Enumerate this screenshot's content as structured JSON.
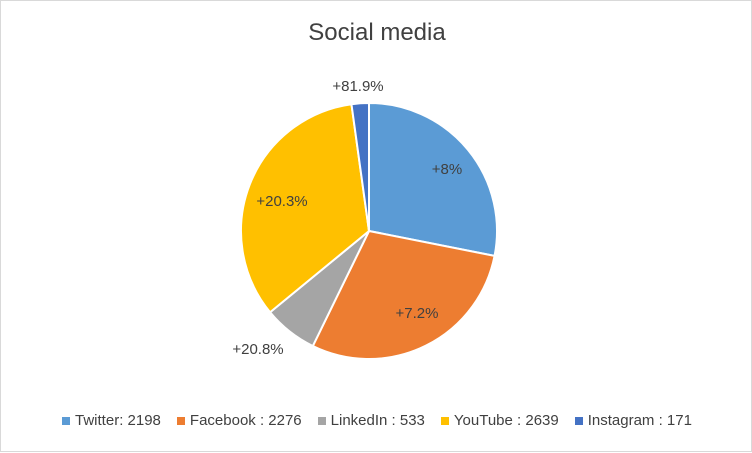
{
  "chart_data": {
    "type": "pie",
    "title": "Social media",
    "categories": [
      "Twitter",
      "Facebook",
      "LinkedIn",
      "YouTube",
      "Instagram"
    ],
    "values": [
      2198,
      2276,
      533,
      2639,
      171
    ],
    "data_labels": [
      "+8%",
      "+7.2%",
      "+20.8%",
      "+20.3%",
      "+81.9%"
    ],
    "legend_labels": [
      "Twitter: 2198",
      "Facebook : 2276",
      "LinkedIn : 533",
      "YouTube : 2639",
      "Instagram : 171"
    ],
    "colors": [
      "#5b9bd5",
      "#ed7d31",
      "#a5a5a5",
      "#ffc000",
      "#4472c4"
    ],
    "legend_position": "bottom",
    "start_angle": "12 o'clock",
    "direction": "clockwise"
  }
}
